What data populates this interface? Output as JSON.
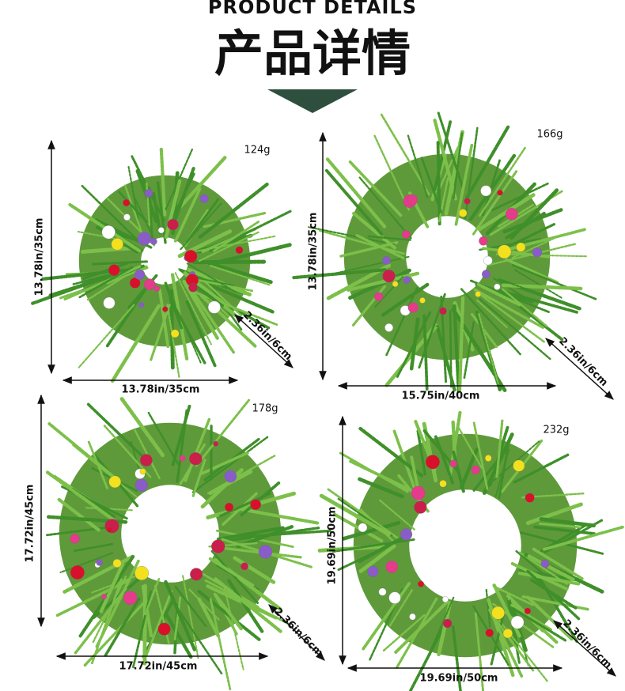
{
  "header": {
    "title_en": "PRODUCT DETAILS",
    "title_zh": "产品详情"
  },
  "products": [
    {
      "weight": "124g",
      "height": "13.78in/35cm",
      "width": "13.78in/35cm",
      "depth": "2.36in/6cm"
    },
    {
      "weight": "166g",
      "height": "13.78in/35cm",
      "width": "15.75in/40cm",
      "depth": "2.36in/6cm"
    },
    {
      "weight": "178g",
      "height": "17.72in/45cm",
      "width": "17.72in/45cm",
      "depth": "2.36in/6cm"
    },
    {
      "weight": "232g",
      "height": "19.69in/50cm",
      "width": "19.69in/50cm",
      "depth": "2.36in/6cm"
    }
  ]
}
